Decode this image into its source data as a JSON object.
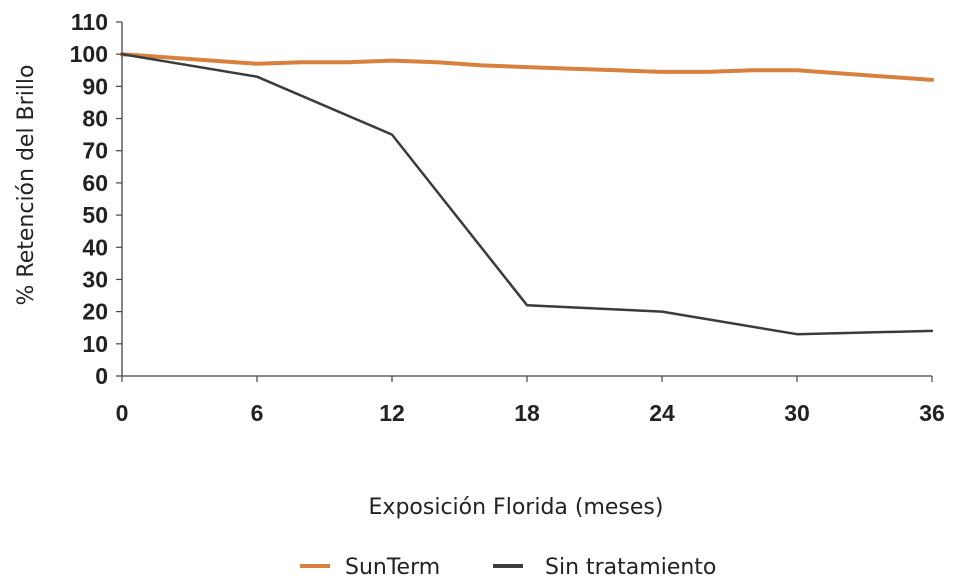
{
  "chart_data": {
    "type": "line",
    "xlabel": "Exposición Florida (meses)",
    "ylabel": "% Retención del Brillo",
    "x_ticks": [
      "0",
      "6",
      "12",
      "18",
      "24",
      "30",
      "36"
    ],
    "y_ticks": [
      "0",
      "10",
      "20",
      "30",
      "40",
      "50",
      "60",
      "70",
      "80",
      "90",
      "100",
      "110"
    ],
    "xlim": [
      0,
      36
    ],
    "ylim": [
      0,
      110
    ],
    "grid": false,
    "legend_position": "bottom-center",
    "series": [
      {
        "name": "SunTerm",
        "color": "#d9803f",
        "x": [
          0,
          2,
          4,
          6,
          8,
          10,
          12,
          14,
          16,
          18,
          20,
          22,
          24,
          26,
          28,
          30,
          32,
          34,
          36
        ],
        "y": [
          100,
          99,
          98,
          97,
          97.5,
          97.5,
          98,
          97.5,
          96.5,
          96,
          95.5,
          95,
          94.5,
          94.5,
          95,
          95,
          94,
          93,
          92
        ]
      },
      {
        "name": "Sin tratamiento",
        "color": "#3b3b3b",
        "x": [
          0,
          6,
          12,
          18,
          24,
          30,
          36
        ],
        "y": [
          100,
          93,
          75,
          22,
          20,
          13,
          14
        ]
      }
    ]
  }
}
